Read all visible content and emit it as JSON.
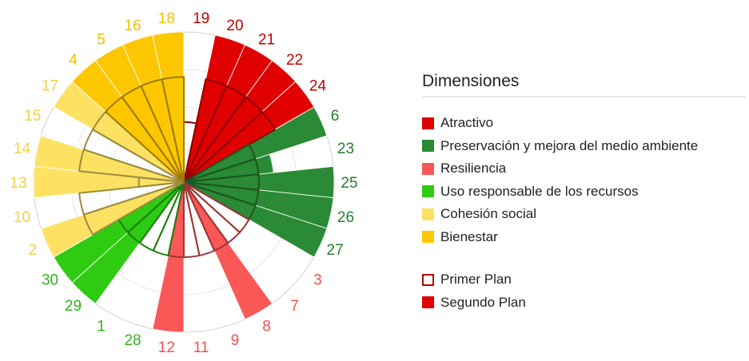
{
  "chart_data": {
    "type": "polar-bar",
    "grid": true,
    "rmax": 10,
    "legend": {
      "title": "Dimensiones",
      "placement": "right",
      "dimensions": [
        {
          "name": "Atractivo",
          "color": "#e00000"
        },
        {
          "name": "Preservación y mejora del medio ambiente",
          "color": "#2b8a35"
        },
        {
          "name": "Resiliencia",
          "color": "#fa5757"
        },
        {
          "name": "Uso responsable de los recursos",
          "color": "#2ecb12"
        },
        {
          "name": "Cohesión social",
          "color": "#fde163"
        },
        {
          "name": "Bienestar",
          "color": "#fdc700"
        }
      ],
      "plans": [
        {
          "name": "Primer Plan",
          "style": "outline"
        },
        {
          "name": "Segundo Plan",
          "style": "filled"
        }
      ]
    },
    "categories": [
      "19",
      "20",
      "21",
      "22",
      "24",
      "6",
      "23",
      "25",
      "26",
      "27",
      "3",
      "7",
      "8",
      "9",
      "11",
      "12",
      "28",
      "1",
      "29",
      "30",
      "2",
      "10",
      "13",
      "14",
      "15",
      "17",
      "4",
      "5",
      "16",
      "18"
    ],
    "dimension_index": [
      0,
      0,
      0,
      0,
      0,
      1,
      1,
      1,
      1,
      1,
      2,
      2,
      2,
      2,
      2,
      2,
      3,
      3,
      3,
      3,
      4,
      4,
      4,
      4,
      4,
      4,
      5,
      5,
      5,
      5
    ],
    "series": [
      {
        "name": "Segundo Plan",
        "values": [
          0,
          10,
          10,
          10,
          10,
          10,
          6,
          10,
          10,
          10,
          0,
          0,
          10,
          0,
          0,
          10,
          0,
          0,
          10,
          10,
          10,
          0,
          10,
          10,
          0,
          10,
          10,
          10,
          10,
          10
        ]
      },
      {
        "name": "Primer Plan",
        "values": [
          4,
          7,
          7,
          7,
          7,
          5,
          5,
          5,
          5,
          5,
          5,
          5,
          5,
          5,
          5,
          5,
          5,
          5,
          5,
          5,
          7,
          7,
          3,
          7,
          7,
          7,
          7,
          7,
          7,
          7
        ]
      }
    ]
  }
}
